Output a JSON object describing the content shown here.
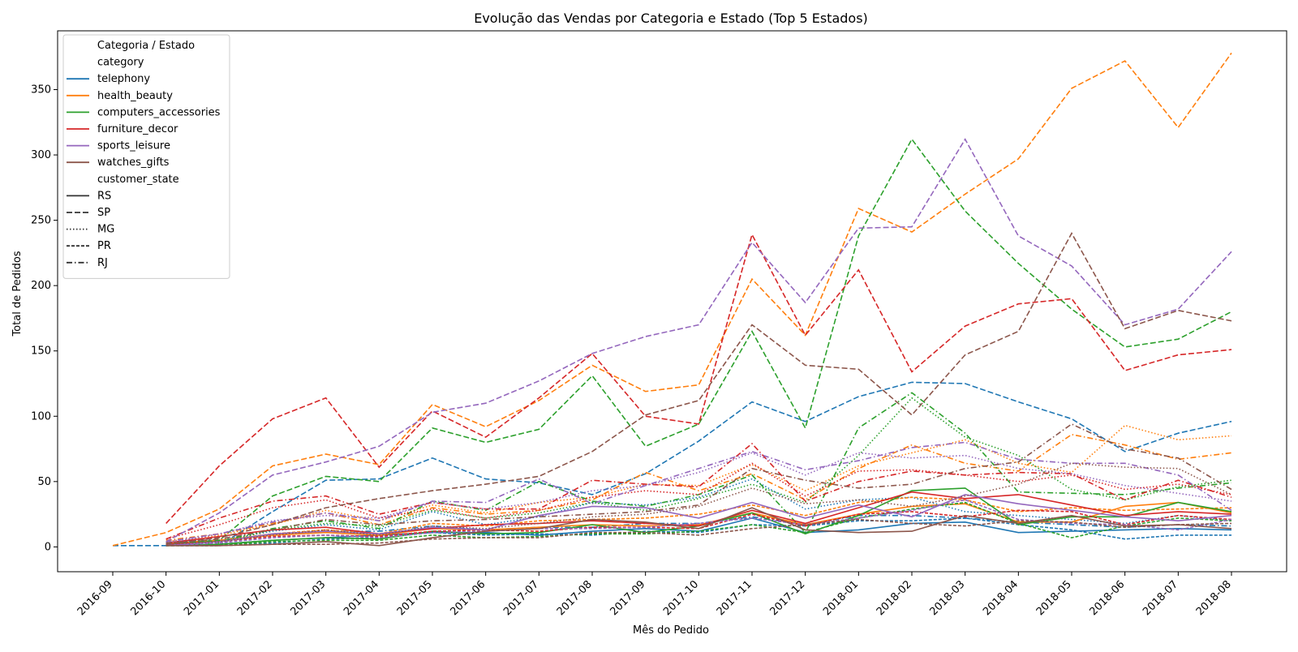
{
  "chart_data": {
    "type": "line",
    "title": "Evolução das Vendas por Categoria e Estado (Top 5 Estados)",
    "xlabel": "Mês do Pedido",
    "ylabel": "Total de Pedidos",
    "x": [
      "2016-09",
      "2016-10",
      "2017-01",
      "2017-02",
      "2017-03",
      "2017-04",
      "2017-05",
      "2017-06",
      "2017-07",
      "2017-08",
      "2017-09",
      "2017-10",
      "2017-11",
      "2017-12",
      "2018-01",
      "2018-02",
      "2018-03",
      "2018-04",
      "2018-05",
      "2018-06",
      "2018-07",
      "2018-08"
    ],
    "ylim": [
      -19,
      395
    ],
    "yticks": [
      0,
      50,
      100,
      150,
      200,
      250,
      300,
      350
    ],
    "grid": false,
    "legend": {
      "title": "Categoria / Estado",
      "placement": "top-left",
      "category_header": "category",
      "state_header": "customer_state",
      "categories": [
        {
          "name": "telephony",
          "color": "#1f77b4"
        },
        {
          "name": "health_beauty",
          "color": "#ff7f0e"
        },
        {
          "name": "computers_accessories",
          "color": "#2ca02c"
        },
        {
          "name": "furniture_decor",
          "color": "#d62728"
        },
        {
          "name": "sports_leisure",
          "color": "#9467bd"
        },
        {
          "name": "watches_gifts",
          "color": "#8c564b"
        }
      ],
      "states": [
        {
          "name": "RS",
          "dash": "solid"
        },
        {
          "name": "SP",
          "dash": "dashed"
        },
        {
          "name": "MG",
          "dash": "dotted"
        },
        {
          "name": "PR",
          "dash": "densely-dashed"
        },
        {
          "name": "RJ",
          "dash": "dashdot"
        }
      ]
    },
    "series": [
      {
        "category": "telephony",
        "state": "SP",
        "values": [
          1,
          1,
          1,
          27,
          51,
          52,
          68,
          52,
          49,
          40,
          56,
          81,
          111,
          96,
          115,
          126,
          125,
          111,
          98,
          73,
          87,
          96
        ]
      },
      {
        "category": "telephony",
        "state": "MG",
        "values": [
          null,
          4,
          5,
          12,
          17,
          13,
          27,
          17,
          23,
          34,
          32,
          38,
          52,
          29,
          36,
          38,
          27,
          24,
          21,
          18,
          24,
          20
        ]
      },
      {
        "category": "telephony",
        "state": "RS",
        "values": [
          null,
          1,
          2,
          5,
          7,
          9,
          11,
          11,
          9,
          12,
          14,
          12,
          22,
          11,
          13,
          18,
          19,
          11,
          12,
          13,
          14,
          13
        ]
      },
      {
        "category": "telephony",
        "state": "PR",
        "values": [
          null,
          1,
          2,
          3,
          6,
          7,
          11,
          9,
          10,
          9,
          12,
          11,
          17,
          16,
          20,
          20,
          22,
          17,
          13,
          6,
          9,
          9
        ]
      },
      {
        "category": "telephony",
        "state": "RJ",
        "values": [
          null,
          3,
          4,
          10,
          12,
          12,
          16,
          13,
          15,
          15,
          18,
          18,
          23,
          17,
          24,
          24,
          22,
          19,
          17,
          15,
          17,
          16
        ]
      },
      {
        "category": "health_beauty",
        "state": "SP",
        "values": [
          1,
          11,
          29,
          62,
          71,
          63,
          109,
          92,
          112,
          139,
          119,
          124,
          205,
          162,
          259,
          241,
          270,
          297,
          351,
          372,
          321,
          378
        ]
      },
      {
        "category": "health_beauty",
        "state": "MG",
        "values": [
          null,
          4,
          9,
          17,
          28,
          20,
          32,
          26,
          34,
          38,
          48,
          47,
          63,
          43,
          62,
          72,
          82,
          64,
          57,
          93,
          82,
          85
        ]
      },
      {
        "category": "health_beauty",
        "state": "RS",
        "values": [
          null,
          2,
          5,
          9,
          11,
          9,
          14,
          13,
          15,
          17,
          16,
          17,
          26,
          17,
          25,
          31,
          33,
          19,
          19,
          31,
          34,
          26
        ]
      },
      {
        "category": "health_beauty",
        "state": "PR",
        "values": [
          null,
          3,
          5,
          10,
          13,
          10,
          18,
          16,
          20,
          21,
          22,
          25,
          32,
          24,
          34,
          38,
          36,
          27,
          30,
          28,
          29,
          30
        ]
      },
      {
        "category": "health_beauty",
        "state": "RJ",
        "values": [
          null,
          5,
          10,
          18,
          26,
          17,
          30,
          25,
          28,
          36,
          57,
          43,
          56,
          36,
          60,
          78,
          64,
          58,
          86,
          78,
          67,
          72
        ]
      },
      {
        "category": "computers_accessories",
        "state": "SP",
        "values": [
          null,
          2,
          5,
          39,
          54,
          50,
          91,
          80,
          90,
          131,
          77,
          94,
          165,
          91,
          238,
          312,
          257,
          217,
          182,
          153,
          159,
          180
        ]
      },
      {
        "category": "computers_accessories",
        "state": "MG",
        "values": [
          null,
          2,
          3,
          13,
          18,
          16,
          28,
          22,
          26,
          34,
          28,
          37,
          48,
          34,
          70,
          114,
          84,
          70,
          44,
          36,
          46,
          51
        ]
      },
      {
        "category": "computers_accessories",
        "state": "RS",
        "values": [
          null,
          1,
          2,
          5,
          7,
          6,
          12,
          10,
          11,
          17,
          11,
          16,
          26,
          10,
          24,
          43,
          45,
          17,
          23,
          23,
          34,
          27
        ]
      },
      {
        "category": "computers_accessories",
        "state": "PR",
        "values": [
          null,
          1,
          1,
          4,
          5,
          5,
          9,
          7,
          8,
          10,
          10,
          12,
          17,
          11,
          22,
          29,
          34,
          18,
          7,
          16,
          22,
          20
        ]
      },
      {
        "category": "computers_accessories",
        "state": "RJ",
        "values": [
          null,
          3,
          4,
          14,
          20,
          14,
          35,
          28,
          50,
          35,
          31,
          40,
          55,
          11,
          91,
          118,
          87,
          42,
          41,
          40,
          45,
          49
        ]
      },
      {
        "category": "furniture_decor",
        "state": "SP",
        "values": [
          null,
          18,
          62,
          98,
          114,
          61,
          104,
          84,
          114,
          148,
          100,
          94,
          239,
          162,
          212,
          134,
          169,
          186,
          190,
          135,
          147,
          151
        ]
      },
      {
        "category": "furniture_decor",
        "state": "MG",
        "values": [
          null,
          6,
          17,
          30,
          36,
          22,
          29,
          22,
          28,
          38,
          43,
          40,
          64,
          39,
          58,
          59,
          55,
          50,
          55,
          44,
          48,
          40
        ]
      },
      {
        "category": "furniture_decor",
        "state": "RS",
        "values": [
          null,
          3,
          8,
          13,
          15,
          10,
          14,
          17,
          18,
          20,
          18,
          16,
          28,
          18,
          30,
          42,
          37,
          40,
          32,
          24,
          27,
          25
        ]
      },
      {
        "category": "furniture_decor",
        "state": "PR",
        "values": [
          null,
          2,
          4,
          8,
          9,
          8,
          12,
          13,
          12,
          15,
          15,
          14,
          25,
          16,
          25,
          27,
          23,
          28,
          27,
          17,
          24,
          21
        ]
      },
      {
        "category": "furniture_decor",
        "state": "RJ",
        "values": [
          null,
          6,
          22,
          35,
          39,
          25,
          34,
          29,
          29,
          51,
          48,
          46,
          79,
          35,
          50,
          58,
          55,
          57,
          56,
          36,
          51,
          38
        ]
      },
      {
        "category": "sports_leisure",
        "state": "SP",
        "values": [
          null,
          4,
          26,
          55,
          65,
          77,
          103,
          110,
          127,
          148,
          161,
          170,
          233,
          187,
          244,
          245,
          312,
          238,
          215,
          170,
          182,
          226
        ]
      },
      {
        "category": "sports_leisure",
        "state": "MG",
        "values": [
          null,
          3,
          10,
          20,
          24,
          22,
          34,
          29,
          34,
          43,
          47,
          57,
          72,
          55,
          72,
          68,
          70,
          60,
          56,
          47,
          41,
          35
        ]
      },
      {
        "category": "sports_leisure",
        "state": "RS",
        "values": [
          null,
          1,
          4,
          10,
          12,
          10,
          15,
          13,
          24,
          31,
          30,
          22,
          34,
          22,
          32,
          23,
          40,
          33,
          28,
          23,
          20,
          24
        ]
      },
      {
        "category": "sports_leisure",
        "state": "PR",
        "values": [
          null,
          1,
          3,
          7,
          9,
          7,
          11,
          12,
          14,
          14,
          15,
          18,
          22,
          17,
          22,
          28,
          36,
          21,
          18,
          17,
          13,
          21
        ]
      },
      {
        "category": "sports_leisure",
        "state": "RJ",
        "values": [
          null,
          4,
          10,
          19,
          26,
          20,
          35,
          34,
          52,
          33,
          47,
          60,
          73,
          59,
          66,
          76,
          80,
          67,
          64,
          64,
          55,
          28
        ]
      },
      {
        "category": "watches_gifts",
        "state": "SP",
        "values": [
          null,
          2,
          7,
          17,
          30,
          37,
          43,
          48,
          54,
          73,
          101,
          112,
          170,
          139,
          136,
          101,
          147,
          165,
          240,
          167,
          181,
          173
        ]
      },
      {
        "category": "watches_gifts",
        "state": "MG",
        "values": [
          null,
          2,
          4,
          9,
          13,
          9,
          16,
          14,
          18,
          23,
          25,
          31,
          45,
          33,
          36,
          31,
          39,
          48,
          64,
          61,
          60,
          40
        ]
      },
      {
        "category": "watches_gifts",
        "state": "RS",
        "values": [
          null,
          1,
          1,
          2,
          4,
          1,
          7,
          12,
          14,
          21,
          19,
          14,
          30,
          13,
          11,
          12,
          24,
          18,
          24,
          16,
          17,
          14
        ]
      },
      {
        "category": "watches_gifts",
        "state": "PR",
        "values": [
          null,
          1,
          1,
          2,
          2,
          3,
          6,
          7,
          7,
          11,
          11,
          9,
          14,
          17,
          21,
          18,
          16,
          20,
          19,
          15,
          17,
          18
        ]
      },
      {
        "category": "watches_gifts",
        "state": "RJ",
        "values": [
          null,
          3,
          6,
          13,
          21,
          17,
          20,
          21,
          23,
          25,
          27,
          32,
          60,
          51,
          45,
          48,
          60,
          65,
          94,
          75,
          68,
          44
        ]
      }
    ]
  }
}
